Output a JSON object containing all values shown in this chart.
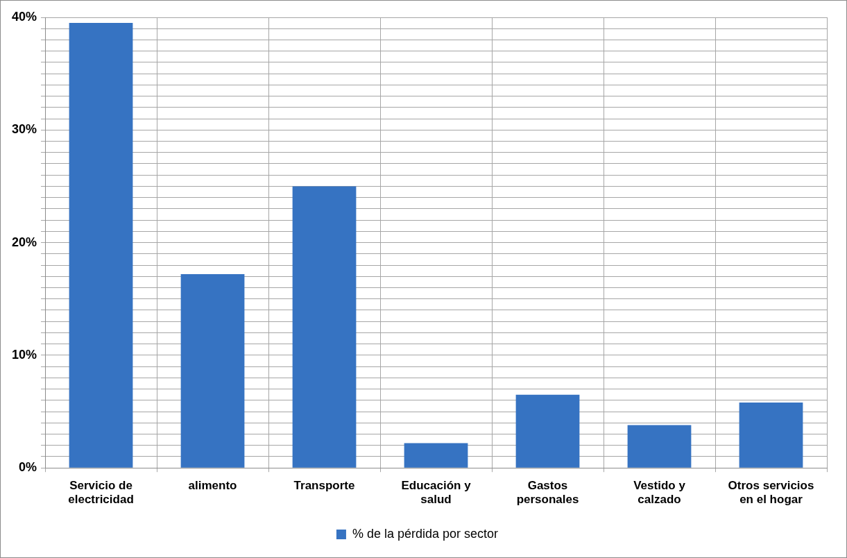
{
  "chart_data": {
    "type": "bar",
    "categories": [
      "Servicio de electricidad",
      "alimento",
      "Transporte",
      "Educación y salud",
      "Gastos personales",
      "Vestido y calzado",
      "Otros servicios en el hogar"
    ],
    "series": [
      {
        "name": "% de la pérdida por sector",
        "color": "#3673c2",
        "values": [
          39.5,
          17.2,
          25.0,
          2.2,
          6.5,
          3.8,
          5.8
        ]
      }
    ],
    "ylim": [
      0,
      40
    ],
    "yticks": [
      {
        "value": 0,
        "label": "0%"
      },
      {
        "value": 1,
        "label": null
      },
      {
        "value": 2,
        "label": null
      },
      {
        "value": 3,
        "label": null
      },
      {
        "value": 4,
        "label": null
      },
      {
        "value": 5,
        "label": null
      },
      {
        "value": 6,
        "label": null
      },
      {
        "value": 7,
        "label": null
      },
      {
        "value": 8,
        "label": null
      },
      {
        "value": 9,
        "label": null
      },
      {
        "value": 10,
        "label": "10%"
      },
      {
        "value": 11,
        "label": null
      },
      {
        "value": 12,
        "label": null
      },
      {
        "value": 13,
        "label": null
      },
      {
        "value": 14,
        "label": null
      },
      {
        "value": 15,
        "label": null
      },
      {
        "value": 16,
        "label": null
      },
      {
        "value": 17,
        "label": null
      },
      {
        "value": 18,
        "label": null
      },
      {
        "value": 19,
        "label": null
      },
      {
        "value": 20,
        "label": "20%"
      },
      {
        "value": 21,
        "label": null
      },
      {
        "value": 22,
        "label": null
      },
      {
        "value": 23,
        "label": null
      },
      {
        "value": 24,
        "label": null
      },
      {
        "value": 25,
        "label": null
      },
      {
        "value": 26,
        "label": null
      },
      {
        "value": 27,
        "label": null
      },
      {
        "value": 28,
        "label": null
      },
      {
        "value": 29,
        "label": null
      },
      {
        "value": 30,
        "label": "30%"
      },
      {
        "value": 31,
        "label": null
      },
      {
        "value": 32,
        "label": null
      },
      {
        "value": 33,
        "label": null
      },
      {
        "value": 34,
        "label": null
      },
      {
        "value": 35,
        "label": null
      },
      {
        "value": 36,
        "label": null
      },
      {
        "value": 37,
        "label": null
      },
      {
        "value": 38,
        "label": null
      },
      {
        "value": 39,
        "label": null
      },
      {
        "value": 40,
        "label": "40%"
      }
    ],
    "grid": true,
    "legend": "bottom"
  }
}
